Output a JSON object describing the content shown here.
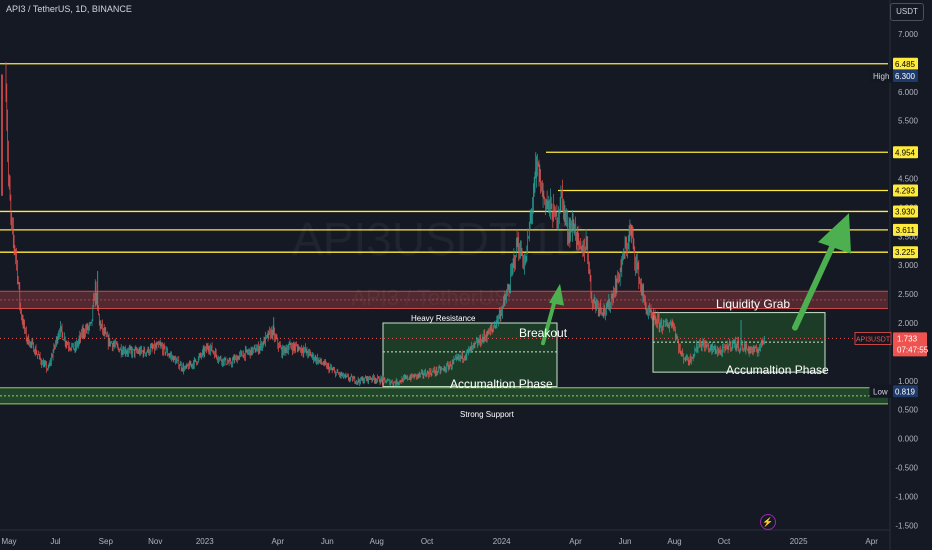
{
  "title": "API3 / TetherUS, 1D, BINANCE",
  "currency_button": "USDT",
  "lightning_icon": "lightning-icon",
  "chart_data": {
    "type": "candlestick",
    "symbol": "API3USDT",
    "current_price": "1.733",
    "countdown": "07:47:55",
    "y_axis": {
      "range": [
        -1.5,
        7.5
      ],
      "ticks": [
        "7.000",
        "6.500",
        "6.000",
        "5.500",
        "5.000",
        "4.500",
        "4.000",
        "3.500",
        "3.000",
        "2.500",
        "2.000",
        "1.500",
        "1.000",
        "0.500",
        "0.000",
        "-0.500",
        "-1.000",
        "-1.500"
      ]
    },
    "x_axis": {
      "ticks": [
        {
          "label": "May",
          "idx": 0
        },
        {
          "label": "Jul",
          "idx": 61
        },
        {
          "label": "Sep",
          "idx": 123
        },
        {
          "label": "Nov",
          "idx": 184
        },
        {
          "label": "2023",
          "idx": 245
        },
        {
          "label": "Apr",
          "idx": 335
        },
        {
          "label": "Jun",
          "idx": 396
        },
        {
          "label": "Aug",
          "idx": 457
        },
        {
          "label": "Oct",
          "idx": 519
        },
        {
          "label": "2024",
          "idx": 611
        },
        {
          "label": "Apr",
          "idx": 702
        },
        {
          "label": "Jun",
          "idx": 763
        },
        {
          "label": "Aug",
          "idx": 824
        },
        {
          "label": "Oct",
          "idx": 885
        },
        {
          "label": "2025",
          "idx": 977
        },
        {
          "label": "Apr",
          "idx": 1067
        }
      ]
    },
    "price_path": [
      [
        0,
        6.2
      ],
      [
        3,
        4.5
      ],
      [
        7,
        3.6
      ],
      [
        12,
        3.2
      ],
      [
        18,
        2.2
      ],
      [
        25,
        1.75
      ],
      [
        35,
        1.55
      ],
      [
        45,
        1.3
      ],
      [
        52,
        1.2
      ],
      [
        58,
        1.5
      ],
      [
        66,
        1.9
      ],
      [
        75,
        1.65
      ],
      [
        85,
        1.55
      ],
      [
        95,
        1.85
      ],
      [
        105,
        1.95
      ],
      [
        110,
        2.6
      ],
      [
        115,
        2.0
      ],
      [
        125,
        1.7
      ],
      [
        140,
        1.55
      ],
      [
        155,
        1.5
      ],
      [
        170,
        1.5
      ],
      [
        190,
        1.6
      ],
      [
        205,
        1.4
      ],
      [
        220,
        1.2
      ],
      [
        235,
        1.35
      ],
      [
        250,
        1.6
      ],
      [
        262,
        1.4
      ],
      [
        275,
        1.3
      ],
      [
        290,
        1.45
      ],
      [
        310,
        1.55
      ],
      [
        328,
        1.85
      ],
      [
        340,
        1.5
      ],
      [
        350,
        1.6
      ],
      [
        365,
        1.55
      ],
      [
        375,
        1.45
      ],
      [
        390,
        1.3
      ],
      [
        405,
        1.15
      ],
      [
        420,
        1.05
      ],
      [
        435,
        1.0
      ],
      [
        450,
        1.05
      ],
      [
        465,
        1.0
      ],
      [
        480,
        0.97
      ],
      [
        495,
        1.05
      ],
      [
        510,
        1.1
      ],
      [
        525,
        1.15
      ],
      [
        540,
        1.2
      ],
      [
        555,
        1.35
      ],
      [
        570,
        1.5
      ],
      [
        585,
        1.7
      ],
      [
        600,
        1.9
      ],
      [
        610,
        2.2
      ],
      [
        620,
        2.6
      ],
      [
        630,
        3.4
      ],
      [
        640,
        3.0
      ],
      [
        648,
        4.0
      ],
      [
        655,
        4.7
      ],
      [
        662,
        4.2
      ],
      [
        670,
        4.0
      ],
      [
        678,
        3.8
      ],
      [
        685,
        4.2
      ],
      [
        692,
        3.6
      ],
      [
        700,
        3.7
      ],
      [
        708,
        3.2
      ],
      [
        716,
        3.4
      ],
      [
        722,
        2.4
      ],
      [
        730,
        2.3
      ],
      [
        740,
        2.2
      ],
      [
        748,
        2.5
      ],
      [
        755,
        2.8
      ],
      [
        762,
        3.2
      ],
      [
        770,
        3.6
      ],
      [
        776,
        3.1
      ],
      [
        783,
        2.6
      ],
      [
        790,
        2.2
      ],
      [
        800,
        2.05
      ],
      [
        810,
        1.95
      ],
      [
        822,
        2.0
      ],
      [
        832,
        1.45
      ],
      [
        842,
        1.35
      ],
      [
        855,
        1.65
      ],
      [
        870,
        1.55
      ],
      [
        882,
        1.5
      ],
      [
        895,
        1.65
      ],
      [
        905,
        1.6
      ],
      [
        915,
        1.55
      ],
      [
        925,
        1.5
      ],
      [
        935,
        1.733
      ]
    ],
    "spikes": [
      [
        113,
        2.9
      ],
      [
        330,
        2.1
      ],
      [
        653,
        4.954
      ],
      [
        771,
        3.7
      ],
      [
        906,
        2.05
      ]
    ],
    "horizontal_levels": [
      "6.485",
      "4.954",
      "4.293",
      "3.930",
      "3.611",
      "3.225"
    ],
    "high_marker": {
      "label": "High",
      "value": "6.300"
    },
    "low_marker": {
      "label": "Low",
      "value": "0.819"
    },
    "colors": {
      "up": "#26a69a",
      "down": "#ef5350",
      "level": "#ffeb3b",
      "background": "#151924",
      "zone_box": "#2e7d32",
      "arrow": "#4caf50"
    },
    "annotations": {
      "heavy_resistance": "Heavy Resistance",
      "breakout": "Breakout",
      "accumulation_1": "Accumaltion Phase",
      "liquidity_grab": "Liquidity Grab",
      "accumulation_2": "Accumaltion Phase",
      "strong_support": "Strong Support"
    },
    "watermark": "API3USDT 1D",
    "watermark_sub": "API3 / TetherUS"
  }
}
